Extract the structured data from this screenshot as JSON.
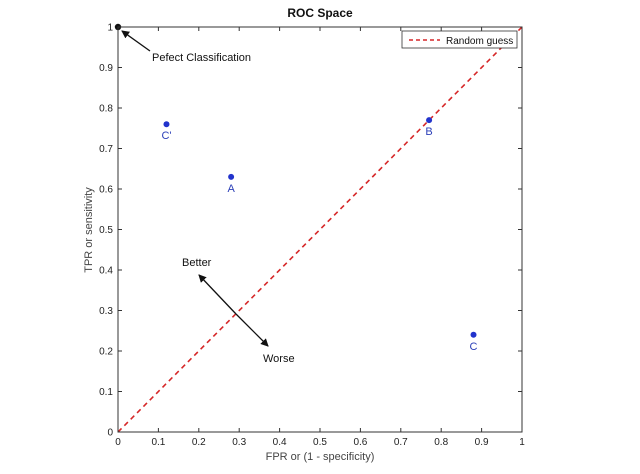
{
  "chart_data": {
    "type": "scatter",
    "title": "ROC Space",
    "xlabel": "FPR or (1 - specificity)",
    "ylabel": "TPR or sensitivity",
    "xlim": [
      0,
      1
    ],
    "ylim": [
      0,
      1
    ],
    "xticks": [
      "0",
      "0.1",
      "0.2",
      "0.3",
      "0.4",
      "0.5",
      "0.6",
      "0.7",
      "0.8",
      "0.9",
      "1"
    ],
    "yticks": [
      "0",
      "0.1",
      "0.2",
      "0.3",
      "0.4",
      "0.5",
      "0.6",
      "0.7",
      "0.8",
      "0.9",
      "1"
    ],
    "grid": false,
    "legend": {
      "position": "top-right",
      "entries": [
        "Random guess"
      ]
    },
    "colors": {
      "points": "#2233cc",
      "random_guess": "#d62728",
      "point_labels": "#2b3fb8"
    },
    "points": [
      {
        "label": "A",
        "x": 0.28,
        "y": 0.63
      },
      {
        "label": "B",
        "x": 0.77,
        "y": 0.77
      },
      {
        "label": "C",
        "x": 0.88,
        "y": 0.24
      },
      {
        "label": "C'",
        "x": 0.12,
        "y": 0.76
      }
    ],
    "perfect_point": {
      "x": 0,
      "y": 1
    },
    "random_guess_line": {
      "name": "Random guess",
      "x": [
        0,
        1
      ],
      "y": [
        0,
        1
      ]
    },
    "annotations": {
      "perfect": "Pefect Classification",
      "better": "Better",
      "worse": "Worse"
    }
  }
}
